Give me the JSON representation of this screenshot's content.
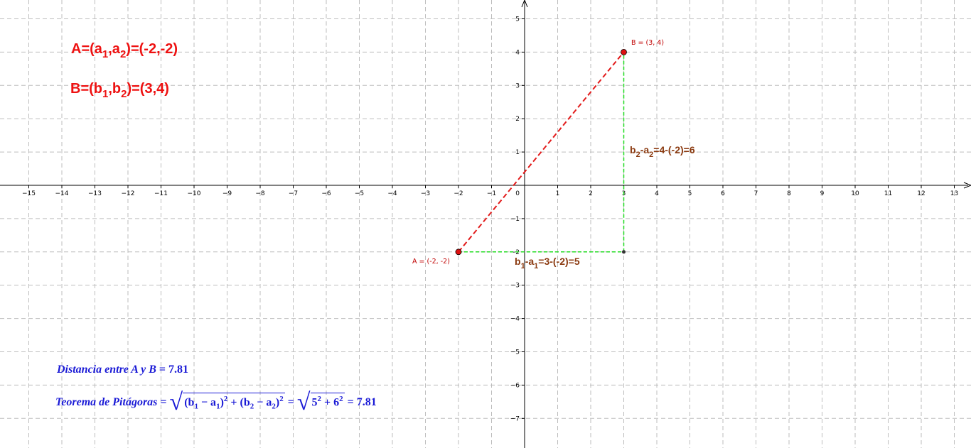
{
  "axes": {
    "x_ticks": [
      "−15",
      "−14",
      "−13",
      "−12",
      "−11",
      "−10",
      "−9",
      "−8",
      "−7",
      "−6",
      "−5",
      "−4",
      "−3",
      "−2",
      "−1",
      "1",
      "2",
      "3",
      "4",
      "5",
      "6",
      "7",
      "8",
      "9",
      "10",
      "11",
      "12",
      "13"
    ],
    "y_ticks": [
      "5",
      "4",
      "3",
      "2",
      "1",
      "−1",
      "−2",
      "−3",
      "−4",
      "−5",
      "−6",
      "−7"
    ],
    "origin_label": "0"
  },
  "points": {
    "A": {
      "label": "A = (-2, -2)",
      "x": -2,
      "y": -2
    },
    "B": {
      "label": "B = (3, 4)",
      "x": 3,
      "y": 4
    },
    "C": {
      "x": 3,
      "y": -2
    }
  },
  "colors": {
    "grid": "#bdbdbd",
    "segment_ab": "#e21a1a",
    "legs": "#22dd22",
    "point_fill": "#dd1111",
    "coord_text": "#ee1111",
    "diff_text": "#8b3a10",
    "formula_text": "#1a1ad6"
  },
  "coordinates": {
    "a_line": {
      "lhs": "A=(a",
      "s1": "1",
      "mid": ",a",
      "s2": "2",
      "rhs": ")=(-2,-2)"
    },
    "b_line": {
      "lhs": "B=(b",
      "s1": "1",
      "mid": ",b",
      "s2": "2",
      "rhs": ")=(3,4)"
    }
  },
  "differences": {
    "vertical": {
      "p1": "b",
      "s1": "2",
      "p2": "-a",
      "s2": "2",
      "rest": "=4-(-2)=6"
    },
    "horizontal": {
      "p1": "b",
      "s1": "1",
      "p2": "-a",
      "s2": "1",
      "rest": "=3-(-2)=5"
    }
  },
  "distance": {
    "label": "Distancia entre A y B",
    "equals": " = ",
    "value": "7.81"
  },
  "pythagoras": {
    "label": "Teorema de Pitágoras",
    "equals": " = ",
    "term1": "(b",
    "t1s1": "1",
    "t1m": " − a",
    "t1s2": "1",
    "t1end": ")",
    "exp": "2",
    "plus": " + ",
    "term2": "(b",
    "t2s1": "2",
    "t2m": " − a",
    "t2s2": "2",
    "t2end": ")",
    "eq2": " = ",
    "inner": "5",
    "plus2": " + ",
    "inner2": "6",
    "eq3": " = ",
    "result": "7.81"
  }
}
